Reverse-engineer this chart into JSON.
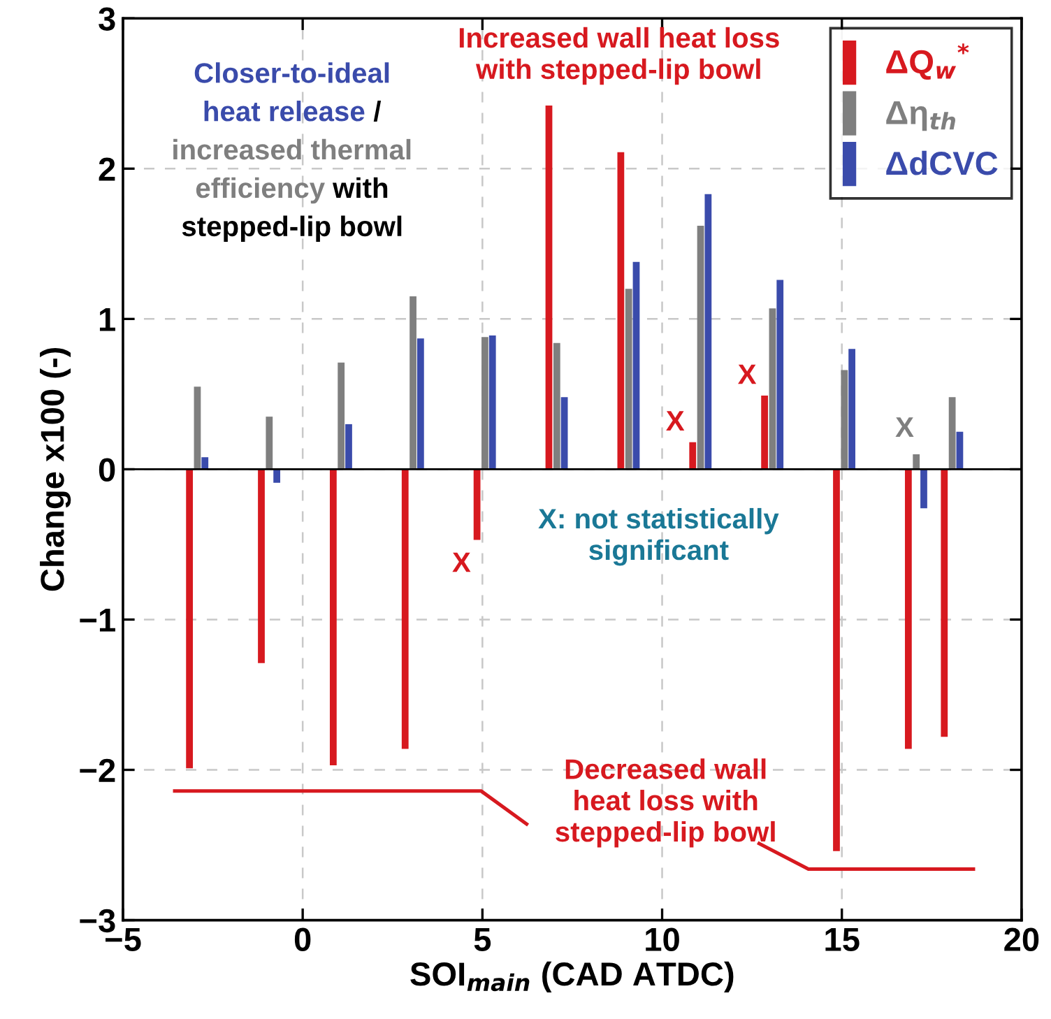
{
  "chart_data": {
    "type": "bar",
    "xlabel": "SOI$_{main}$ (CAD ATDC)",
    "ylabel": "Change x100 (-)",
    "series": [
      {
        "name": "ΔQ$_{w}$$^{*}$",
        "color": "#d7191f",
        "x": [
          -3.15,
          -1.15,
          0.85,
          2.85,
          4.85,
          6.85,
          8.85,
          10.85,
          12.85,
          14.85,
          16.85,
          17.85
        ],
        "values": [
          -1.99,
          -1.29,
          -1.97,
          -1.86,
          -0.47,
          2.42,
          2.11,
          0.18,
          0.49,
          -2.54,
          -1.86,
          -1.78
        ]
      },
      {
        "name": "Δη$_{th}$",
        "color": "#7f7f7f",
        "x": [
          -2.93,
          -0.93,
          1.07,
          3.07,
          5.07,
          7.07,
          9.07,
          11.07,
          13.07,
          15.07,
          17.07,
          18.07
        ],
        "values": [
          0.55,
          0.35,
          0.71,
          1.15,
          0.88,
          0.84,
          1.2,
          1.62,
          1.07,
          0.66,
          0.1,
          0.48
        ]
      },
      {
        "name": "ΔdCVC",
        "color": "#3a4bab",
        "x": [
          -2.72,
          -0.72,
          1.28,
          3.28,
          5.28,
          7.28,
          9.28,
          11.28,
          13.28,
          15.28,
          17.28,
          18.28
        ],
        "values": [
          0.08,
          -0.09,
          0.3,
          0.87,
          0.89,
          0.48,
          1.38,
          1.83,
          1.26,
          0.8,
          -0.26,
          0.25
        ]
      }
    ],
    "xlim": [
      -5,
      20
    ],
    "xticks": [
      {
        "value": -5,
        "label": "−5"
      },
      0,
      5,
      10,
      15,
      20
    ],
    "ylim": [
      -3,
      3
    ],
    "yticks": [
      {
        "value": -3,
        "label": "−3"
      },
      {
        "value": -2,
        "label": "−2"
      },
      {
        "value": -1,
        "label": "−1"
      },
      0,
      1,
      2,
      3
    ],
    "grid": true,
    "legend": "top right",
    "annotations": [
      "Closer-to-ideal heat release",
      "/",
      "increased thermal efficiency",
      "with stepped-lip bowl",
      "Increased wall heat loss\nwith stepped-lip bowl",
      "X: not statistically\nsignificant",
      "Decreased wall\nheat loss with\nstepped-lip bowl",
      {
        "text": "X",
        "x": 4.85,
        "y": -0.47
      },
      {
        "text": "X",
        "x": 10.85,
        "y": 0.18
      },
      {
        "text": "X",
        "x": 12.85,
        "y": 0.49
      },
      {
        "text": "X",
        "x": 17.07,
        "y": 0.1
      }
    ]
  }
}
